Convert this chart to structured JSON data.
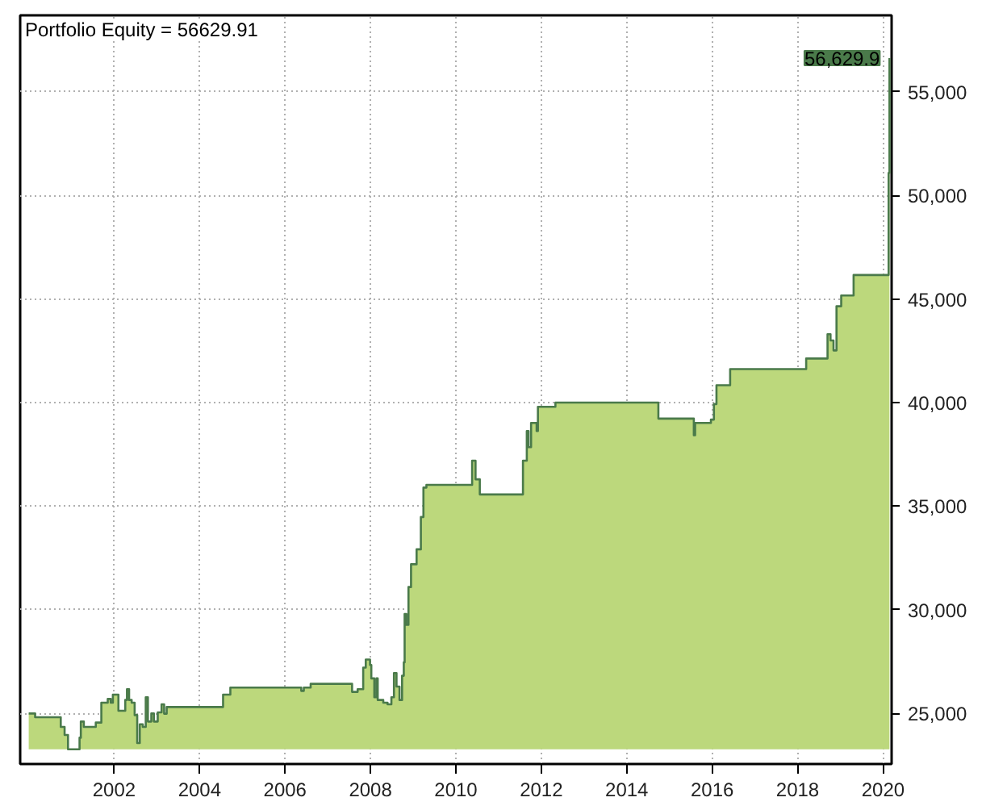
{
  "chart_data": {
    "type": "area",
    "title": "Portfolio Equity = 56629.91",
    "x": [
      2000.0,
      2000.15,
      2000.75,
      2000.84,
      2000.92,
      2001.19,
      2001.22,
      2001.29,
      2001.57,
      2001.7,
      2001.85,
      2001.92,
      2001.97,
      2002.1,
      2002.26,
      2002.3,
      2002.35,
      2002.41,
      2002.48,
      2002.54,
      2002.6,
      2002.67,
      2002.74,
      2002.79,
      2002.87,
      2002.93,
      2003.02,
      2003.11,
      2003.17,
      2003.23,
      2004.55,
      2004.72,
      2006.38,
      2006.44,
      2006.6,
      2007.57,
      2007.7,
      2007.83,
      2007.89,
      2007.99,
      2008.02,
      2008.09,
      2008.14,
      2008.17,
      2008.3,
      2008.4,
      2008.49,
      2008.55,
      2008.61,
      2008.68,
      2008.74,
      2008.78,
      2008.8,
      2008.84,
      2008.89,
      2008.95,
      2009.08,
      2009.18,
      2009.24,
      2009.31,
      2010.38,
      2010.46,
      2010.56,
      2011.57,
      2011.66,
      2011.7,
      2011.76,
      2011.89,
      2011.92,
      2012.33,
      2014.74,
      2015.57,
      2015.6,
      2015.97,
      2016.04,
      2016.1,
      2016.42,
      2018.2,
      2018.7,
      2018.77,
      2018.84,
      2018.91,
      2019.02,
      2019.31,
      2020.13,
      2020.15
    ],
    "series": [
      {
        "color": "#bcd87c",
        "values": [
          25000,
          24820,
          24350,
          23960,
          23270,
          23830,
          24610,
          24350,
          24560,
          25520,
          25700,
          25520,
          25910,
          25130,
          25650,
          26170,
          25650,
          25520,
          24920,
          23570,
          24480,
          24350,
          25780,
          24610,
          25000,
          24610,
          25050,
          25440,
          24990,
          25310,
          25910,
          26250,
          26090,
          26250,
          26430,
          26040,
          26170,
          27210,
          27600,
          27340,
          26690,
          25780,
          26690,
          25650,
          25520,
          25440,
          25780,
          26950,
          26300,
          25650,
          26820,
          27470,
          29800,
          29280,
          31100,
          32200,
          32920,
          34480,
          35900,
          36030,
          37200,
          36300,
          35570,
          37200,
          38630,
          37850,
          39020,
          38630,
          39800,
          40000,
          39230,
          38430,
          39020,
          39180,
          39930,
          40840,
          41620,
          42130,
          43300,
          43000,
          42520,
          44650,
          45170,
          46160,
          51090,
          56629.9
        ]
      }
    ],
    "xlim": [
      1999.8,
      2020.2
    ],
    "xticks": [
      2002,
      2004,
      2006,
      2008,
      2010,
      2012,
      2014,
      2016,
      2018,
      2020
    ],
    "ylim": [
      22560,
      58690
    ],
    "yticks": [
      {
        "value": 25000,
        "label": "25,000"
      },
      {
        "value": 30000,
        "label": "30,000"
      },
      {
        "value": 35000,
        "label": "35,000"
      },
      {
        "value": 40000,
        "label": "40,000"
      },
      {
        "value": 45000,
        "label": "45,000"
      },
      {
        "value": 50000,
        "label": "50,000"
      },
      {
        "value": 55000,
        "label": "55,000"
      }
    ],
    "annotations": [
      {
        "text": "56,629.9",
        "x": 2020.15,
        "y": 56629.9
      }
    ],
    "grid": true
  }
}
